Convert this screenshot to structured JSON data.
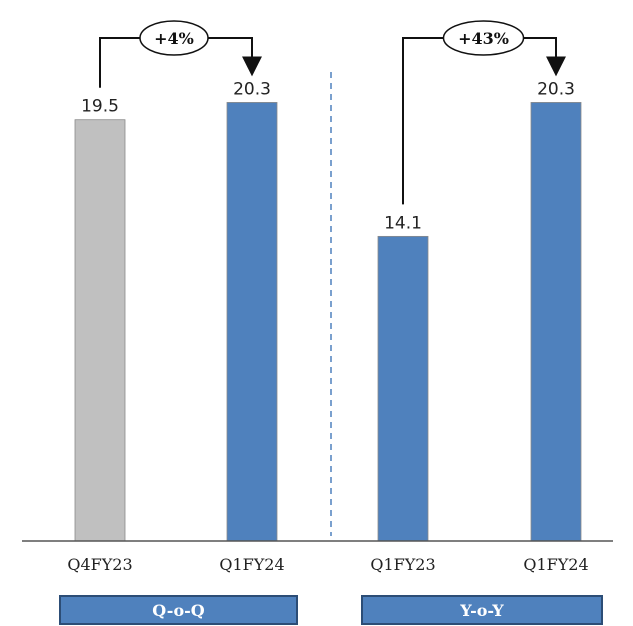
{
  "chart_data": {
    "type": "bar",
    "categories": [
      "Q4FY23",
      "Q1FY24",
      "Q1FY23",
      "Q1FY24"
    ],
    "values": [
      19.5,
      20.3,
      14.1,
      20.3
    ],
    "value_labels": [
      "19.5",
      "20.3",
      "14.1",
      "20.3"
    ],
    "bar_colors": [
      "#c0c0c0",
      "#4f81bd",
      "#4f81bd",
      "#4f81bd"
    ],
    "ylim": [
      0,
      22
    ],
    "grid": false,
    "groups": [
      {
        "label": "Q-o-Q",
        "change_label": "+4%",
        "bars": [
          0,
          1
        ]
      },
      {
        "label": "Y-o-Y",
        "change_label": "+43%",
        "bars": [
          2,
          3
        ]
      }
    ],
    "divider": "dashed line between groups",
    "colors": {
      "grey_bar": "#c0c0c0",
      "blue_bar": "#4f81bd",
      "group_box": "#4f81bd",
      "group_box_border": "#2c4d76",
      "divider": "#4f81bd"
    }
  }
}
